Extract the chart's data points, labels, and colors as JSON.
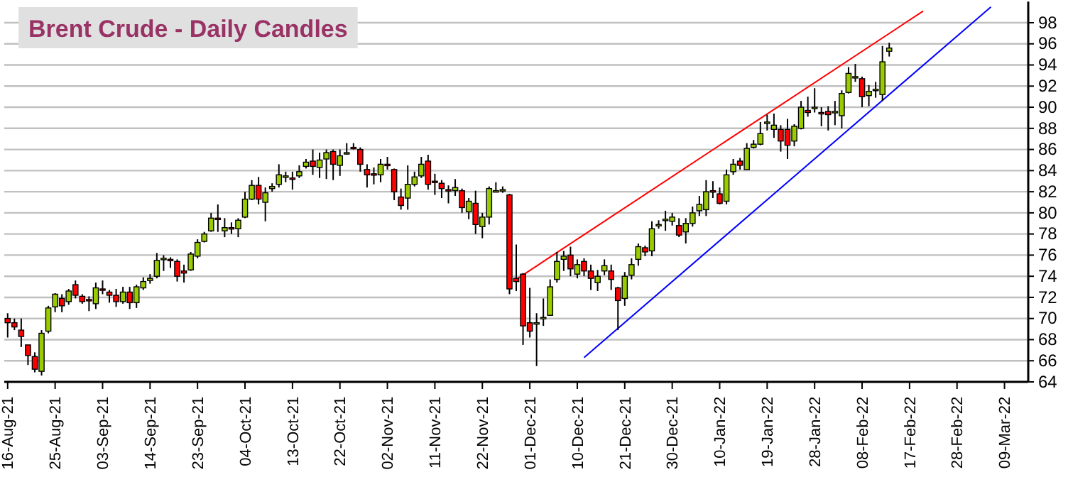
{
  "chart_data": {
    "type": "candlestick",
    "title": "Brent Crude - Daily Candles",
    "categories": [
      "16-Aug-21",
      null,
      null,
      null,
      null,
      null,
      null,
      "25-Aug-21",
      null,
      null,
      null,
      null,
      null,
      null,
      "03-Sep-21",
      null,
      null,
      null,
      null,
      null,
      null,
      "14-Sep-21",
      null,
      null,
      null,
      null,
      null,
      null,
      "23-Sep-21",
      null,
      null,
      null,
      null,
      null,
      null,
      "04-Oct-21",
      null,
      null,
      null,
      null,
      null,
      null,
      "13-Oct-21",
      null,
      null,
      null,
      null,
      null,
      null,
      "22-Oct-21",
      null,
      null,
      null,
      null,
      null,
      null,
      "02-Nov-21",
      null,
      null,
      null,
      null,
      null,
      null,
      "11-Nov-21",
      null,
      null,
      null,
      null,
      null,
      null,
      "22-Nov-21",
      null,
      null,
      null,
      null,
      null,
      null,
      "01-Dec-21",
      null,
      null,
      null,
      null,
      null,
      null,
      "10-Dec-21",
      null,
      null,
      null,
      null,
      null,
      null,
      "21-Dec-21",
      null,
      null,
      null,
      null,
      null,
      null,
      "30-Dec-21",
      null,
      null,
      null,
      null,
      null,
      null,
      "10-Jan-22",
      null,
      null,
      null,
      null,
      null,
      null,
      "19-Jan-22",
      null,
      null,
      null,
      null,
      null,
      null,
      "28-Jan-22",
      null,
      null,
      null,
      null,
      null,
      null,
      "08-Feb-22",
      null,
      null,
      null,
      null,
      null,
      null,
      "17-Feb-22",
      null,
      null,
      null,
      null,
      null,
      null,
      "28-Feb-22",
      null,
      null,
      null,
      null,
      null,
      null,
      "09-Mar-22",
      null,
      null,
      null
    ],
    "ohlc": [
      [
        70.0,
        70.5,
        68.2,
        69.6
      ],
      [
        69.6,
        70.0,
        68.9,
        69.2
      ],
      [
        68.9,
        70.0,
        67.3,
        68.3
      ],
      [
        67.5,
        67.5,
        65.6,
        66.5
      ],
      [
        66.4,
        66.8,
        64.9,
        65.2
      ],
      [
        65.0,
        68.9,
        64.6,
        68.6
      ],
      [
        68.8,
        71.2,
        68.6,
        71.0
      ],
      [
        71.1,
        72.4,
        70.6,
        72.3
      ],
      [
        71.9,
        72.3,
        70.6,
        71.2
      ],
      [
        71.6,
        72.8,
        71.3,
        72.6
      ],
      [
        73.2,
        73.6,
        71.9,
        72.2
      ],
      [
        72.1,
        72.3,
        71.4,
        71.6
      ],
      [
        71.8,
        72.1,
        70.7,
        71.7
      ],
      [
        71.4,
        73.4,
        70.9,
        72.9
      ],
      [
        72.8,
        73.6,
        72.3,
        72.8
      ],
      [
        72.5,
        72.7,
        71.5,
        72.2
      ],
      [
        72.2,
        72.8,
        71.1,
        71.6
      ],
      [
        71.6,
        73.0,
        71.4,
        72.5
      ],
      [
        72.5,
        73.0,
        70.9,
        71.5
      ],
      [
        71.5,
        73.2,
        71.0,
        73.0
      ],
      [
        72.9,
        73.9,
        72.7,
        73.5
      ],
      [
        73.6,
        74.2,
        73.3,
        73.8
      ],
      [
        74.0,
        76.2,
        73.8,
        75.5
      ],
      [
        75.6,
        76.0,
        74.5,
        75.7
      ],
      [
        75.6,
        75.8,
        74.8,
        75.5
      ],
      [
        75.4,
        75.6,
        73.5,
        74.0
      ],
      [
        74.5,
        75.1,
        73.4,
        74.3
      ],
      [
        74.6,
        76.3,
        74.5,
        76.1
      ],
      [
        75.9,
        77.5,
        75.7,
        77.2
      ],
      [
        77.3,
        78.2,
        77.2,
        78.0
      ],
      [
        78.3,
        80.0,
        78.2,
        79.5
      ],
      [
        79.5,
        80.8,
        78.2,
        79.4
      ],
      [
        78.3,
        79.5,
        77.7,
        78.6
      ],
      [
        78.6,
        79.1,
        78.0,
        78.5
      ],
      [
        78.5,
        79.5,
        77.7,
        79.3
      ],
      [
        79.6,
        82.0,
        79.5,
        81.3
      ],
      [
        81.3,
        83.1,
        81.2,
        82.6
      ],
      [
        82.6,
        83.4,
        80.8,
        81.3
      ],
      [
        81.0,
        82.4,
        79.2,
        81.9
      ],
      [
        82.3,
        82.8,
        82.0,
        82.5
      ],
      [
        82.7,
        84.6,
        82.4,
        83.6
      ],
      [
        83.4,
        83.9,
        82.9,
        83.5
      ],
      [
        83.3,
        83.9,
        82.2,
        83.2
      ],
      [
        83.5,
        84.5,
        83.3,
        83.9
      ],
      [
        84.4,
        85.1,
        84.2,
        84.8
      ],
      [
        84.9,
        86.0,
        83.6,
        84.4
      ],
      [
        84.3,
        85.7,
        83.3,
        85.0
      ],
      [
        85.1,
        86.0,
        83.2,
        85.7
      ],
      [
        85.8,
        86.0,
        83.1,
        84.6
      ],
      [
        84.5,
        86.0,
        83.5,
        85.4
      ],
      [
        85.6,
        86.6,
        85.5,
        85.7
      ],
      [
        86.2,
        86.6,
        86.0,
        86.1
      ],
      [
        86.0,
        86.2,
        83.9,
        84.6
      ],
      [
        84.1,
        84.6,
        82.4,
        83.6
      ],
      [
        83.7,
        84.3,
        82.7,
        83.6
      ],
      [
        83.6,
        85.1,
        82.9,
        84.6
      ],
      [
        84.6,
        85.3,
        84.1,
        84.5
      ],
      [
        84.1,
        84.2,
        81.2,
        82.0
      ],
      [
        81.5,
        82.3,
        80.3,
        80.7
      ],
      [
        81.4,
        84.5,
        80.3,
        82.7
      ],
      [
        82.7,
        83.9,
        82.5,
        83.4
      ],
      [
        83.5,
        85.3,
        83.3,
        84.6
      ],
      [
        84.9,
        85.5,
        82.2,
        82.7
      ],
      [
        83.0,
        83.7,
        81.7,
        82.9
      ],
      [
        82.8,
        83.1,
        81.4,
        82.3
      ],
      [
        82.2,
        82.6,
        80.9,
        82.1
      ],
      [
        82.1,
        83.2,
        81.6,
        82.4
      ],
      [
        82.1,
        82.3,
        80.0,
        80.5
      ],
      [
        80.1,
        81.4,
        79.4,
        81.1
      ],
      [
        80.9,
        82.1,
        78.0,
        78.9
      ],
      [
        78.7,
        80.0,
        77.6,
        79.6
      ],
      [
        79.6,
        82.5,
        78.9,
        82.3
      ],
      [
        82.0,
        82.9,
        82.0,
        82.1
      ],
      [
        82.1,
        82.5,
        81.9,
        82.2
      ],
      [
        81.7,
        81.8,
        72.3,
        72.8
      ],
      [
        73.8,
        77.0,
        72.6,
        73.5
      ],
      [
        74.2,
        74.3,
        67.5,
        69.3
      ],
      [
        69.6,
        72.9,
        68.2,
        68.8
      ],
      [
        69.5,
        70.5,
        65.5,
        69.6
      ],
      [
        70.0,
        71.9,
        69.3,
        70.1
      ],
      [
        70.3,
        73.7,
        70.3,
        73.0
      ],
      [
        73.7,
        76.3,
        73.4,
        75.4
      ],
      [
        75.6,
        76.4,
        74.5,
        75.9
      ],
      [
        76.0,
        76.8,
        74.0,
        74.7
      ],
      [
        74.2,
        75.6,
        73.8,
        75.1
      ],
      [
        75.4,
        75.7,
        74.0,
        74.5
      ],
      [
        74.5,
        75.1,
        72.7,
        73.8
      ],
      [
        73.4,
        74.6,
        72.6,
        74.0
      ],
      [
        74.5,
        75.6,
        74.1,
        75.0
      ],
      [
        74.5,
        75.1,
        72.7,
        73.7
      ],
      [
        72.9,
        73.0,
        68.9,
        71.7
      ],
      [
        71.9,
        74.4,
        71.2,
        74.0
      ],
      [
        74.1,
        75.7,
        73.7,
        75.1
      ],
      [
        75.6,
        77.1,
        75.0,
        76.8
      ],
      [
        76.7,
        76.9,
        75.9,
        76.3
      ],
      [
        76.4,
        79.2,
        75.9,
        78.5
      ],
      [
        78.8,
        79.3,
        78.5,
        78.9
      ],
      [
        79.3,
        80.2,
        78.3,
        79.4
      ],
      [
        79.2,
        80.0,
        78.8,
        79.6
      ],
      [
        78.8,
        79.5,
        77.7,
        77.9
      ],
      [
        78.2,
        79.5,
        77.1,
        79.0
      ],
      [
        79.0,
        80.6,
        78.7,
        80.0
      ],
      [
        80.2,
        81.6,
        79.7,
        80.8
      ],
      [
        80.3,
        83.1,
        79.7,
        82.0
      ],
      [
        82.1,
        83.0,
        81.4,
        82.0
      ],
      [
        81.8,
        82.4,
        80.8,
        80.9
      ],
      [
        81.1,
        84.1,
        80.8,
        83.6
      ],
      [
        83.9,
        85.1,
        83.6,
        84.6
      ],
      [
        84.9,
        85.2,
        84.1,
        84.5
      ],
      [
        84.1,
        86.6,
        84.1,
        86.1
      ],
      [
        86.2,
        86.9,
        86.1,
        86.5
      ],
      [
        86.5,
        88.6,
        86.4,
        87.5
      ],
      [
        88.5,
        89.3,
        87.8,
        88.6
      ],
      [
        87.9,
        89.4,
        87.1,
        88.3
      ],
      [
        87.9,
        88.3,
        85.8,
        86.8
      ],
      [
        87.9,
        88.9,
        85.1,
        86.4
      ],
      [
        86.8,
        88.4,
        86.3,
        88.2
      ],
      [
        88.0,
        90.6,
        87.9,
        90.0
      ],
      [
        89.7,
        91.0,
        89.1,
        89.5
      ],
      [
        89.9,
        91.8,
        89.5,
        90.0
      ],
      [
        89.5,
        90.0,
        88.2,
        89.4
      ],
      [
        89.6,
        90.1,
        87.8,
        89.3
      ],
      [
        89.5,
        90.6,
        88.3,
        89.6
      ],
      [
        89.2,
        91.6,
        88.0,
        91.3
      ],
      [
        91.4,
        93.8,
        91.3,
        93.2
      ],
      [
        92.8,
        94.1,
        92.4,
        92.9
      ],
      [
        92.7,
        92.9,
        90.0,
        91.0
      ],
      [
        91.1,
        92.1,
        90.1,
        91.5
      ],
      [
        91.6,
        92.4,
        90.9,
        91.7
      ],
      [
        91.2,
        95.8,
        90.6,
        94.3
      ],
      [
        95.3,
        96.1,
        94.8,
        95.6
      ],
      null,
      null,
      null,
      null,
      null,
      null,
      null,
      null,
      null,
      null,
      null,
      null,
      null,
      null,
      null,
      null,
      null,
      null,
      null,
      null
    ],
    "colors": [
      "#ff0000",
      "#ff0000",
      "#ff0000",
      "#ff0000",
      "#ff0000",
      "#99cc00",
      "#99cc00",
      "#99cc00",
      "#ff0000",
      "#99cc00",
      "#ff0000",
      "#ff0000",
      "#ff0000",
      "#99cc00",
      "#ff0000",
      "#ff0000",
      "#ff0000",
      "#99cc00",
      "#ff0000",
      "#99cc00",
      "#99cc00",
      "#99cc00",
      "#99cc00",
      "#99cc00",
      "#ff0000",
      "#ff0000",
      "#ff0000",
      "#99cc00",
      "#99cc00",
      "#99cc00",
      "#99cc00",
      "#ff0000",
      "#99cc00",
      "#ff0000",
      "#99cc00",
      "#99cc00",
      "#99cc00",
      "#ff0000",
      "#99cc00",
      "#99cc00",
      "#99cc00",
      "#99cc00",
      "#ff0000",
      "#99cc00",
      "#99cc00",
      "#ff0000",
      "#99cc00",
      "#99cc00",
      "#ff0000",
      "#99cc00",
      "#99cc00",
      "#ff0000",
      "#ff0000",
      "#ff0000",
      "#ff0000",
      "#99cc00",
      "#ff0000",
      "#ff0000",
      "#ff0000",
      "#99cc00",
      "#99cc00",
      "#99cc00",
      "#ff0000",
      "#ff0000",
      "#ff0000",
      "#ff0000",
      "#99cc00",
      "#ff0000",
      "#99cc00",
      "#ff0000",
      "#99cc00",
      "#99cc00",
      "#99cc00",
      "#99cc00",
      "#ff0000",
      "#ff0000",
      "#ff0000",
      "#ff0000",
      "#99cc00",
      "#99cc00",
      "#99cc00",
      "#99cc00",
      "#99cc00",
      "#ff0000",
      "#99cc00",
      "#ff0000",
      "#ff0000",
      "#99cc00",
      "#99cc00",
      "#ff0000",
      "#ff0000",
      "#99cc00",
      "#99cc00",
      "#99cc00",
      "#ff0000",
      "#99cc00",
      "#99cc00",
      "#99cc00",
      "#99cc00",
      "#ff0000",
      "#99cc00",
      "#99cc00",
      "#99cc00",
      "#99cc00",
      "#ff0000",
      "#ff0000",
      "#99cc00",
      "#99cc00",
      "#ff0000",
      "#99cc00",
      "#99cc00",
      "#99cc00",
      "#99cc00",
      "#99cc00",
      "#ff0000",
      "#ff0000",
      "#99cc00",
      "#99cc00",
      "#ff0000",
      "#99cc00",
      "#ff0000",
      "#ff0000",
      "#99cc00",
      "#99cc00",
      "#99cc00",
      "#99cc00",
      "#ff0000",
      "#99cc00",
      "#99cc00",
      "#99cc00",
      "#99cc00",
      null,
      null,
      null,
      null,
      null,
      null,
      null,
      null,
      null,
      null,
      null,
      null,
      null,
      null,
      null,
      null,
      null,
      null,
      null,
      null
    ],
    "series": [
      {
        "type": "line",
        "color": "#ff0000",
        "values": [
          null,
          null,
          null,
          null,
          null,
          null,
          null,
          null,
          null,
          null,
          null,
          null,
          null,
          null,
          null,
          null,
          null,
          null,
          null,
          null,
          null,
          null,
          null,
          null,
          null,
          null,
          null,
          null,
          null,
          null,
          null,
          null,
          null,
          null,
          null,
          null,
          null,
          null,
          null,
          null,
          null,
          null,
          null,
          null,
          null,
          null,
          null,
          null,
          null,
          null,
          null,
          null,
          null,
          null,
          null,
          null,
          null,
          null,
          null,
          null,
          null,
          null,
          null,
          null,
          null,
          null,
          null,
          null,
          null,
          null,
          null,
          null,
          null,
          null,
          null,
          73.7,
          null,
          null,
          null,
          null,
          null,
          null,
          null,
          null,
          null,
          null,
          null,
          null,
          null,
          null,
          null,
          null,
          null,
          null,
          null,
          null,
          null,
          null,
          null,
          null,
          null,
          null,
          null,
          null,
          null,
          null,
          null,
          null,
          null,
          null,
          null,
          null,
          null,
          null,
          null,
          null,
          null,
          null,
          null,
          null,
          null,
          null,
          null,
          null,
          null,
          null,
          null,
          null,
          null,
          null,
          null,
          null,
          null,
          null,
          null,
          99.1,
          null,
          null,
          null,
          null,
          null,
          null,
          null,
          null,
          null,
          null,
          null,
          null,
          null,
          null,
          null
        ]
      },
      {
        "type": "line",
        "color": "#0000ff",
        "values": [
          null,
          null,
          null,
          null,
          null,
          null,
          null,
          null,
          null,
          null,
          null,
          null,
          null,
          null,
          null,
          null,
          null,
          null,
          null,
          null,
          null,
          null,
          null,
          null,
          null,
          null,
          null,
          null,
          null,
          null,
          null,
          null,
          null,
          null,
          null,
          null,
          null,
          null,
          null,
          null,
          null,
          null,
          null,
          null,
          null,
          null,
          null,
          null,
          null,
          null,
          null,
          null,
          null,
          null,
          null,
          null,
          null,
          null,
          null,
          null,
          null,
          null,
          null,
          null,
          null,
          null,
          null,
          null,
          null,
          null,
          null,
          null,
          null,
          null,
          null,
          null,
          null,
          null,
          null,
          null,
          null,
          null,
          null,
          null,
          null,
          66.3,
          null,
          null,
          null,
          null,
          null,
          null,
          null,
          null,
          null,
          null,
          null,
          null,
          null,
          null,
          null,
          null,
          null,
          null,
          null,
          null,
          null,
          null,
          null,
          null,
          null,
          null,
          null,
          null,
          null,
          null,
          null,
          null,
          null,
          null,
          null,
          null,
          null,
          null,
          null,
          null,
          null,
          null,
          null,
          null,
          null,
          null,
          null,
          null,
          null,
          null,
          null,
          null,
          null,
          null,
          null,
          null,
          null,
          null,
          null,
          99.5,
          null,
          null,
          null,
          null,
          null
        ]
      }
    ],
    "ylim": [
      64,
      100
    ],
    "yticks": [
      64,
      66,
      68,
      70,
      72,
      74,
      76,
      78,
      80,
      82,
      84,
      86,
      88,
      90,
      92,
      94,
      96,
      98
    ],
    "grid": "y"
  }
}
